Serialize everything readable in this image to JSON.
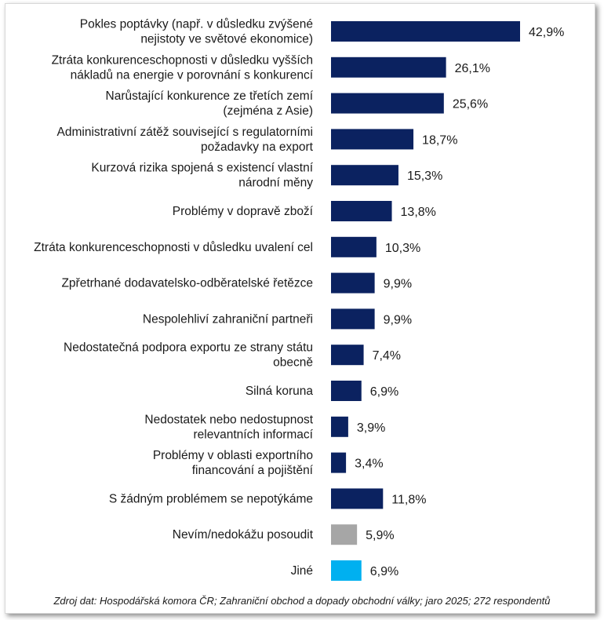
{
  "chart_data": {
    "type": "bar",
    "orientation": "horizontal",
    "categories": [
      [
        "Pokles poptávky (např. v důsledku zvýšené",
        "nejistoty ve světové ekonomice)"
      ],
      [
        "Ztráta konkurenceschopnosti v důsledku vyšších",
        "nákladů na energie v porovnání s konkurencí"
      ],
      [
        "Narůstající konkurence ze třetích zemí",
        "(zejména z Asie)"
      ],
      [
        "Administrativní zátěž související s regulatorními",
        "požadavky na export"
      ],
      [
        "Kurzová rizika spojená s existencí vlastní",
        "národní měny"
      ],
      [
        "Problémy v dopravě zboží"
      ],
      [
        "Ztráta konkurenceschopnosti v důsledku uvalení cel"
      ],
      [
        "Zpřetrhané dodavatelsko-odběratelské řetězce"
      ],
      [
        "Nespolehliví zahraniční partneři"
      ],
      [
        "Nedostatečná podpora exportu ze strany státu",
        "obecně"
      ],
      [
        "Silná koruna"
      ],
      [
        "Nedostatek nebo nedostupnost",
        "relevantních informací"
      ],
      [
        "Problémy v oblasti exportního",
        "financování a pojištění"
      ],
      [
        "S žádným problémem se nepotýkáme"
      ],
      [
        "Nevím/nedokážu posoudit"
      ],
      [
        "Jiné"
      ]
    ],
    "values": [
      42.9,
      26.1,
      25.6,
      18.7,
      15.3,
      13.8,
      10.3,
      9.9,
      9.9,
      7.4,
      6.9,
      3.9,
      3.4,
      11.8,
      5.9,
      6.9
    ],
    "value_labels": [
      "42,9%",
      "26,1%",
      "25,6%",
      "18,7%",
      "15,3%",
      "13,8%",
      "10,3%",
      "9,9%",
      "9,9%",
      "7,4%",
      "6,9%",
      "3,9%",
      "3,4%",
      "11,8%",
      "5,9%",
      "6,9%"
    ],
    "bar_colors": [
      "#0b2260",
      "#0b2260",
      "#0b2260",
      "#0b2260",
      "#0b2260",
      "#0b2260",
      "#0b2260",
      "#0b2260",
      "#0b2260",
      "#0b2260",
      "#0b2260",
      "#0b2260",
      "#0b2260",
      "#0b2260",
      "#a6a6a6",
      "#00b0f0"
    ],
    "xlim": [
      0,
      42.9
    ],
    "grid": false,
    "legend": "none"
  },
  "source_note": "Zdroj dat: Hospodářská komora ČR; Zahraniční obchod a dopady obchodní války; jaro 2025; 272 respondentů"
}
